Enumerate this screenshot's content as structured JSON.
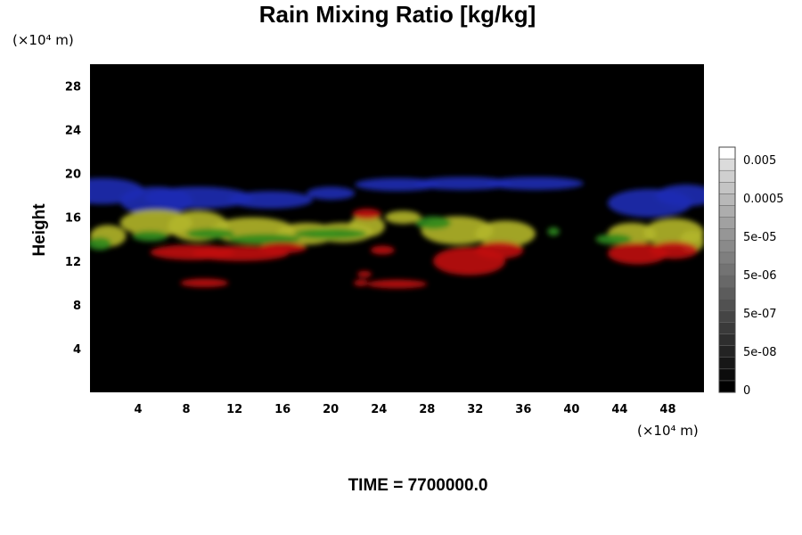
{
  "chart_data": {
    "type": "heatmap",
    "title": "Rain Mixing Ratio [kg/kg]",
    "ylabel": "Height",
    "xlabel": "",
    "x_unit": "(×10⁴ m)",
    "y_unit": "(×10⁴ m)",
    "xlim": [
      0,
      51
    ],
    "ylim": [
      0,
      30
    ],
    "x_ticks": [
      4,
      8,
      12,
      16,
      20,
      24,
      28,
      32,
      36,
      40,
      44,
      48
    ],
    "y_ticks": [
      4,
      8,
      12,
      16,
      20,
      24,
      28
    ],
    "background_color": "#000000",
    "footer": "TIME = 7700000.0",
    "colorbar": {
      "labels": [
        "0.005",
        "0.0005",
        "5e-05",
        "5e-06",
        "5e-07",
        "5e-08",
        "0"
      ],
      "levels": 21,
      "colors": [
        "#000000",
        "#ffffff"
      ]
    },
    "features": [
      {
        "color": "#1c2bb4",
        "blobs": [
          [
            1,
            18.4,
            3.5,
            1.2
          ],
          [
            5.5,
            17.5,
            3.0,
            1.3
          ],
          [
            9,
            17.8,
            4.5,
            1.0
          ],
          [
            15,
            17.6,
            3.5,
            0.8
          ],
          [
            20,
            18.2,
            2.0,
            0.6
          ],
          [
            25.5,
            19.0,
            3.5,
            0.6
          ],
          [
            31,
            19.1,
            4.0,
            0.6
          ],
          [
            37,
            19.1,
            4.0,
            0.6
          ],
          [
            46.5,
            17.3,
            3.5,
            1.3
          ],
          [
            49.5,
            18.0,
            2.5,
            1.0
          ]
        ]
      },
      {
        "color": "#b3b62a",
        "blobs": [
          [
            1.5,
            14.3,
            1.5,
            1.0
          ],
          [
            5.5,
            15.5,
            3.0,
            1.2
          ],
          [
            9,
            15.2,
            2.5,
            1.4
          ],
          [
            13.5,
            14.8,
            3.5,
            1.2
          ],
          [
            18,
            14.5,
            2.5,
            1.0
          ],
          [
            21,
            14.6,
            2.5,
            0.9
          ],
          [
            23,
            15.2,
            1.5,
            1.0
          ],
          [
            26,
            16.0,
            1.5,
            0.6
          ],
          [
            30.5,
            14.8,
            3.0,
            1.3
          ],
          [
            34.5,
            14.5,
            2.5,
            1.2
          ],
          [
            45,
            14.5,
            2.0,
            1.0
          ],
          [
            48.5,
            14.6,
            2.5,
            1.3
          ],
          [
            50,
            13.8,
            1.0,
            1.0
          ]
        ]
      },
      {
        "color": "#2e8a1c",
        "blobs": [
          [
            0.8,
            13.6,
            1.0,
            0.6
          ],
          [
            5,
            14.3,
            1.5,
            0.5
          ],
          [
            10,
            14.5,
            2.0,
            0.5
          ],
          [
            14.5,
            14.0,
            3.0,
            0.5
          ],
          [
            20,
            14.5,
            3.0,
            0.5
          ],
          [
            28.5,
            15.5,
            1.5,
            0.6
          ],
          [
            38.5,
            14.7,
            0.5,
            0.4
          ],
          [
            43.5,
            14.0,
            1.5,
            0.5
          ]
        ]
      },
      {
        "color": "#c01212",
        "blobs": [
          [
            8.5,
            12.8,
            3.5,
            0.7
          ],
          [
            12.5,
            12.7,
            4.0,
            0.7
          ],
          [
            16,
            13.2,
            2.0,
            0.5
          ],
          [
            23,
            16.3,
            1.2,
            0.5
          ],
          [
            24.3,
            13.0,
            1.0,
            0.4
          ],
          [
            9.5,
            10.0,
            2.0,
            0.4
          ],
          [
            22.8,
            10.8,
            0.6,
            0.3
          ],
          [
            22.5,
            10.0,
            0.6,
            0.3
          ],
          [
            25.5,
            9.9,
            2.5,
            0.4
          ],
          [
            31.5,
            12.0,
            3.0,
            1.3
          ],
          [
            34,
            13.0,
            2.0,
            0.8
          ],
          [
            45.5,
            12.7,
            2.5,
            1.0
          ],
          [
            48.5,
            13.0,
            2.0,
            0.8
          ]
        ]
      }
    ]
  }
}
